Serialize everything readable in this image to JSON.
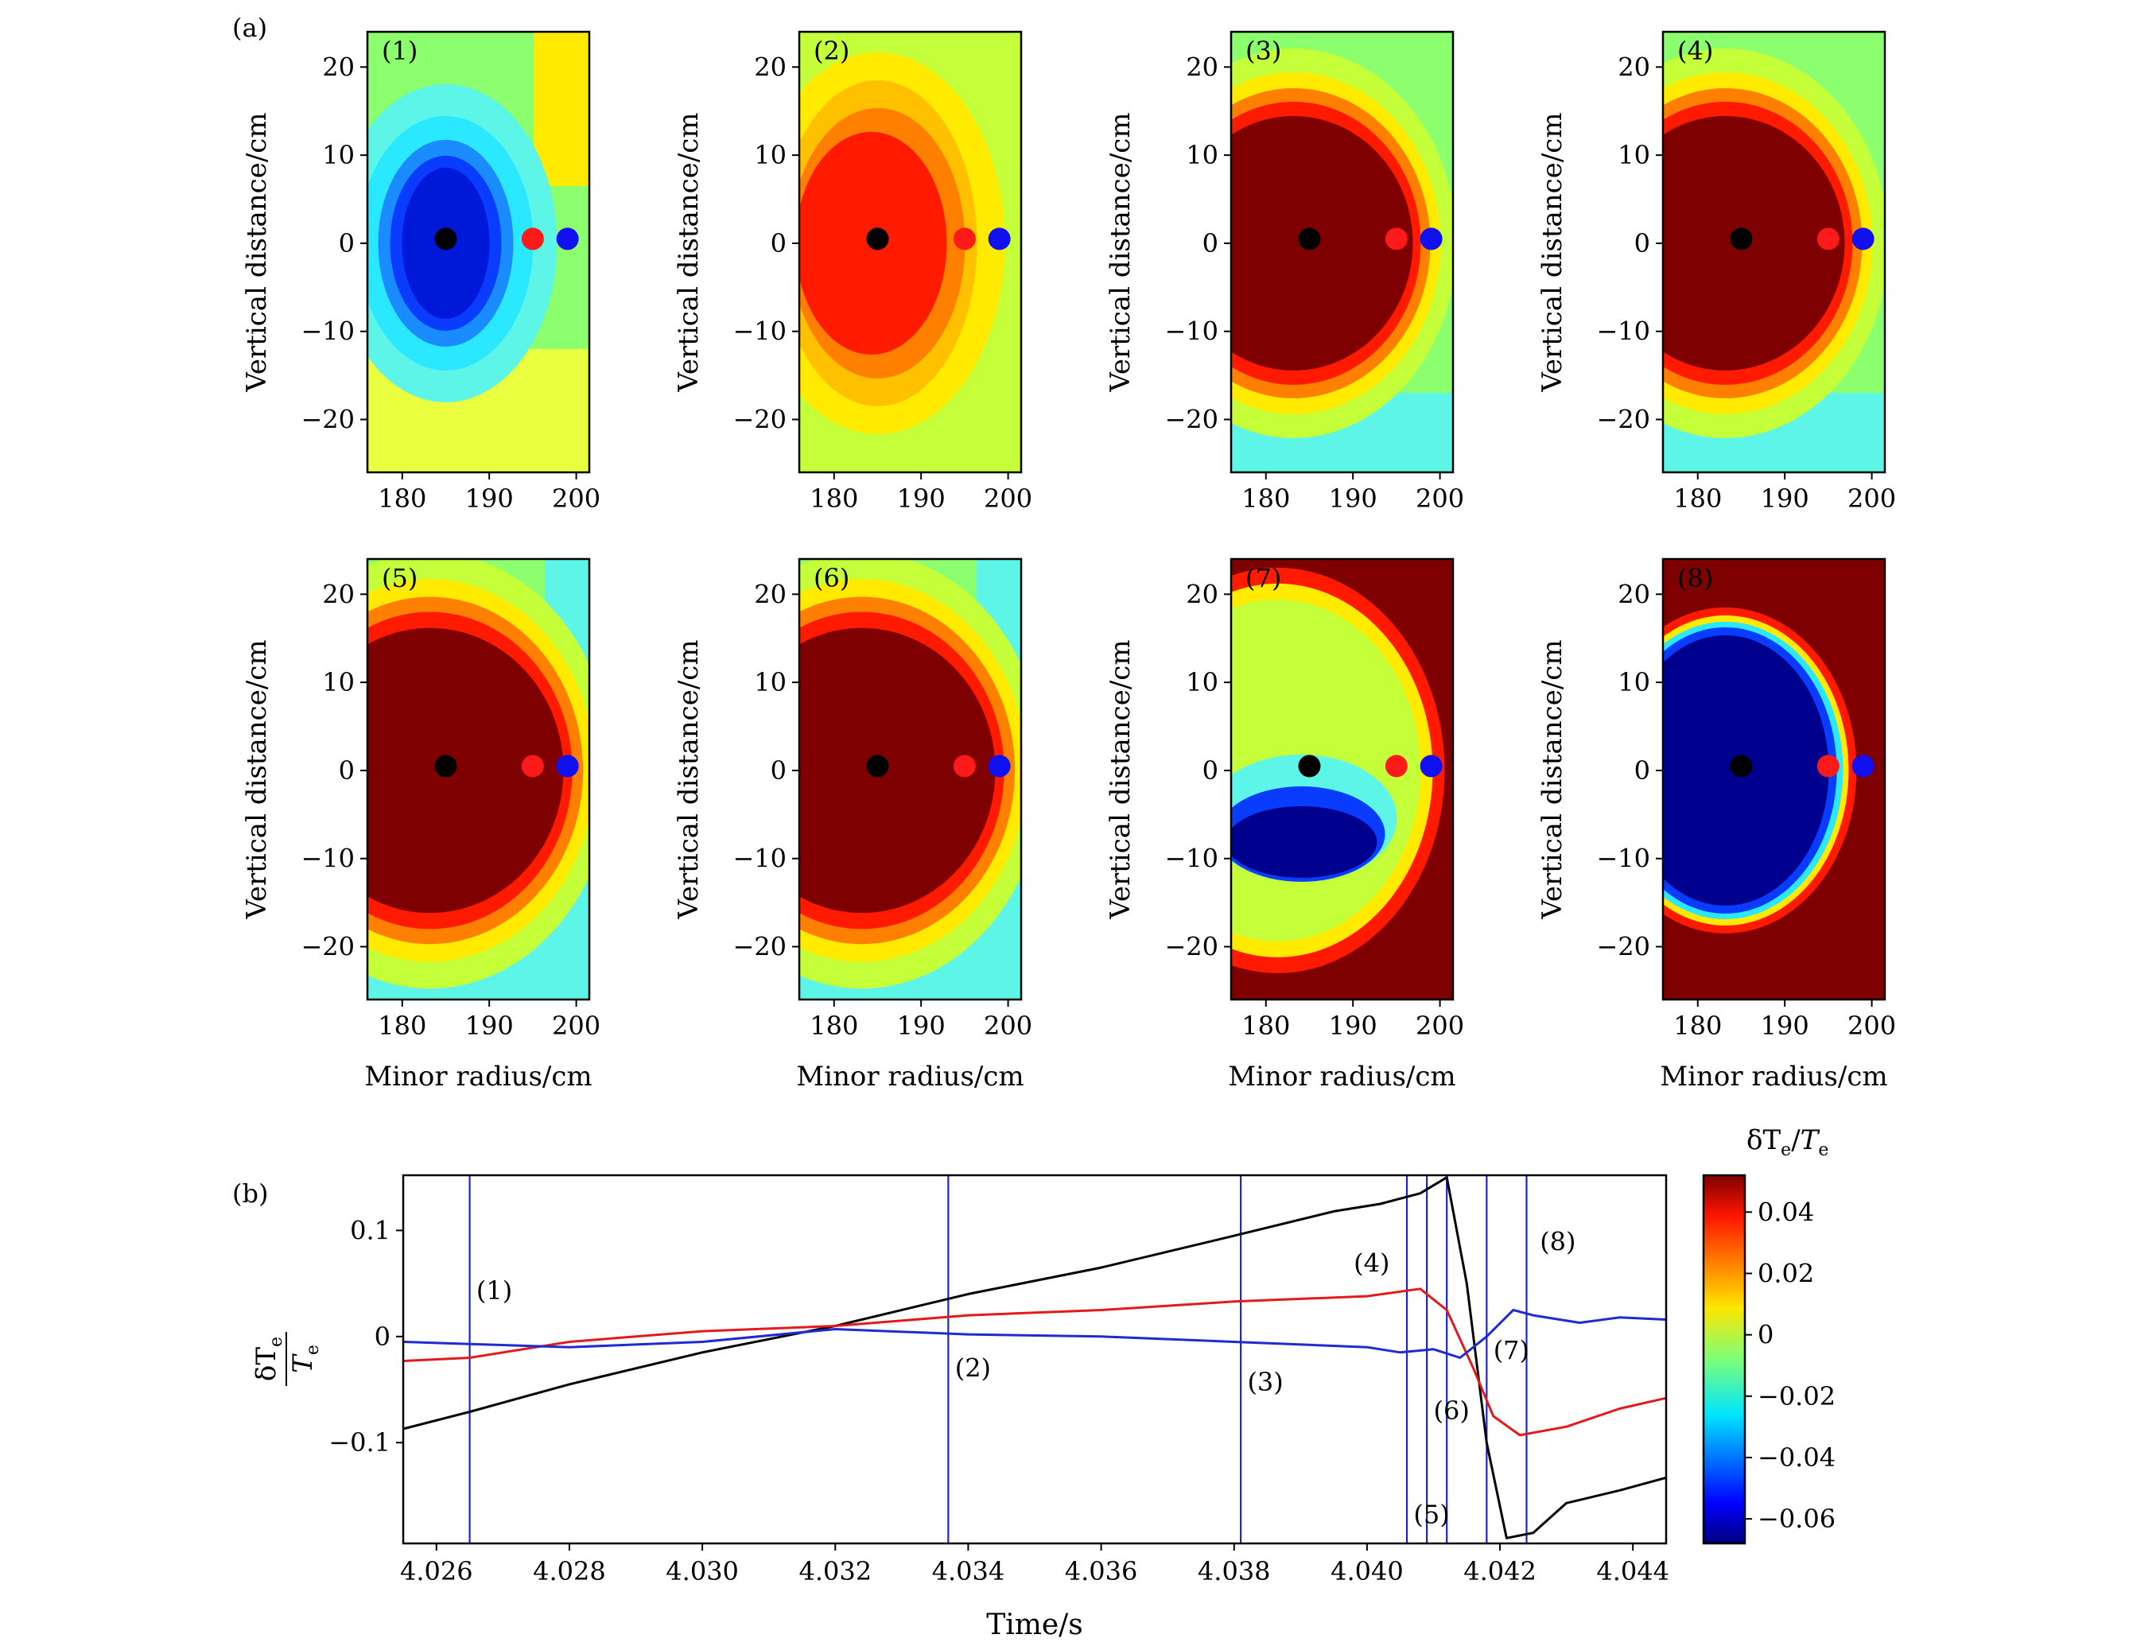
{
  "figure": {
    "panel_a_label": "(a)",
    "panel_b_label": "(b)"
  },
  "colors": {
    "axis": "#000000",
    "series_black": "#000000",
    "series_red": "#e31a1c",
    "series_blue": "#1f2bd0",
    "vline": "#1b25c8",
    "marker_black": "#000000",
    "marker_red": "#ff1a1a",
    "marker_blue": "#1010f0"
  },
  "chart_data": [
    {
      "type": "heatmap",
      "panels": [
        {
          "label": "(1)",
          "pattern": "cold_core"
        },
        {
          "label": "(2)",
          "pattern": "warm_core"
        },
        {
          "label": "(3)",
          "pattern": "hot_core"
        },
        {
          "label": "(4)",
          "pattern": "hot_core"
        },
        {
          "label": "(5)",
          "pattern": "hot_core_large"
        },
        {
          "label": "(6)",
          "pattern": "hot_core_large"
        },
        {
          "label": "(7)",
          "pattern": "crash_partial"
        },
        {
          "label": "(8)",
          "pattern": "crash_full"
        }
      ],
      "xlabel": "Minor radius/cm",
      "ylabel": "Vertical distance/cm",
      "xlim": [
        176,
        201.5
      ],
      "ylim": [
        -26,
        24
      ],
      "xticks": [
        180,
        190,
        200
      ],
      "yticks": [
        20,
        10,
        0,
        -10,
        -20
      ],
      "ytick_labels": [
        "20",
        "10",
        "0",
        "−10",
        "−20"
      ],
      "markers": [
        {
          "color": "black",
          "x": 185,
          "y": 0.5
        },
        {
          "color": "red",
          "x": 195,
          "y": 0.5
        },
        {
          "color": "blue",
          "x": 199,
          "y": 0.5
        }
      ]
    },
    {
      "type": "line",
      "xlabel": "Time/s",
      "ylabel_num": "δT",
      "ylabel_num_sub": "e",
      "ylabel_den": "T",
      "ylabel_den_sub": "e",
      "xlim": [
        4.0255,
        4.0445
      ],
      "ylim": [
        -0.195,
        0.152
      ],
      "xticks": [
        4.026,
        4.028,
        4.03,
        4.032,
        4.034,
        4.036,
        4.038,
        4.04,
        4.042,
        4.044
      ],
      "xtick_labels": [
        "4.026",
        "4.028",
        "4.030",
        "4.032",
        "4.034",
        "4.036",
        "4.038",
        "4.040",
        "4.042",
        "4.044"
      ],
      "yticks": [
        0.1,
        0,
        -0.1
      ],
      "ytick_labels": [
        "0.1",
        "0",
        "−0.1"
      ],
      "series": [
        {
          "color": "black",
          "x": [
            4.0255,
            4.0265,
            4.028,
            4.03,
            4.032,
            4.034,
            4.036,
            4.038,
            4.0395,
            4.0402,
            4.0408,
            4.0412,
            4.0415,
            4.0418,
            4.0421,
            4.0425,
            4.043,
            4.0438,
            4.0445
          ],
          "y": [
            -0.087,
            -0.071,
            -0.045,
            -0.015,
            0.01,
            0.04,
            0.065,
            0.095,
            0.118,
            0.125,
            0.135,
            0.15,
            0.05,
            -0.1,
            -0.19,
            -0.185,
            -0.157,
            -0.145,
            -0.133
          ]
        },
        {
          "color": "red",
          "x": [
            4.0255,
            4.0265,
            4.028,
            4.03,
            4.032,
            4.034,
            4.036,
            4.038,
            4.04,
            4.0408,
            4.0412,
            4.0416,
            4.0419,
            4.0423,
            4.043,
            4.0438,
            4.0445
          ],
          "y": [
            -0.023,
            -0.02,
            -0.005,
            0.005,
            0.01,
            0.02,
            0.025,
            0.033,
            0.038,
            0.045,
            0.025,
            -0.03,
            -0.075,
            -0.093,
            -0.085,
            -0.068,
            -0.058
          ]
        },
        {
          "color": "blue",
          "x": [
            4.0255,
            4.0265,
            4.028,
            4.03,
            4.032,
            4.034,
            4.036,
            4.038,
            4.04,
            4.0405,
            4.041,
            4.0414,
            4.0418,
            4.0422,
            4.0425,
            4.0432,
            4.0438,
            4.0445
          ],
          "y": [
            -0.005,
            -0.007,
            -0.01,
            -0.005,
            0.007,
            0.002,
            0.0,
            -0.005,
            -0.01,
            -0.015,
            -0.012,
            -0.02,
            0.0,
            0.025,
            0.02,
            0.013,
            0.018,
            0.016
          ]
        }
      ],
      "vlines": [
        4.0265,
        4.0337,
        4.0381,
        4.0406,
        4.0409,
        4.0412,
        4.0418,
        4.0424
      ],
      "annotations": [
        {
          "text": "(1)",
          "x": 4.0266,
          "y": 0.035
        },
        {
          "text": "(2)",
          "x": 4.0338,
          "y": -0.038
        },
        {
          "text": "(3)",
          "x": 4.0382,
          "y": -0.051
        },
        {
          "text": "(4)",
          "x": 4.0398,
          "y": 0.061
        },
        {
          "text": "(5)",
          "x": 4.0407,
          "y": -0.176
        },
        {
          "text": "(6)",
          "x": 4.041,
          "y": -0.078
        },
        {
          "text": "(7)",
          "x": 4.0419,
          "y": -0.021
        },
        {
          "text": "(8)",
          "x": 4.0426,
          "y": 0.081
        }
      ]
    },
    {
      "type": "colorbar",
      "title_num": "δT",
      "title_num_sub": "e",
      "title_den": "T",
      "title_den_sub": "e",
      "range": [
        -0.068,
        0.052
      ],
      "ticks": [
        0.04,
        0.02,
        0,
        -0.02,
        -0.04,
        -0.06
      ],
      "tick_labels": [
        "0.04",
        "0.02",
        "0",
        "−0.02",
        "−0.04",
        "−0.06"
      ],
      "colormap": "jet"
    }
  ]
}
